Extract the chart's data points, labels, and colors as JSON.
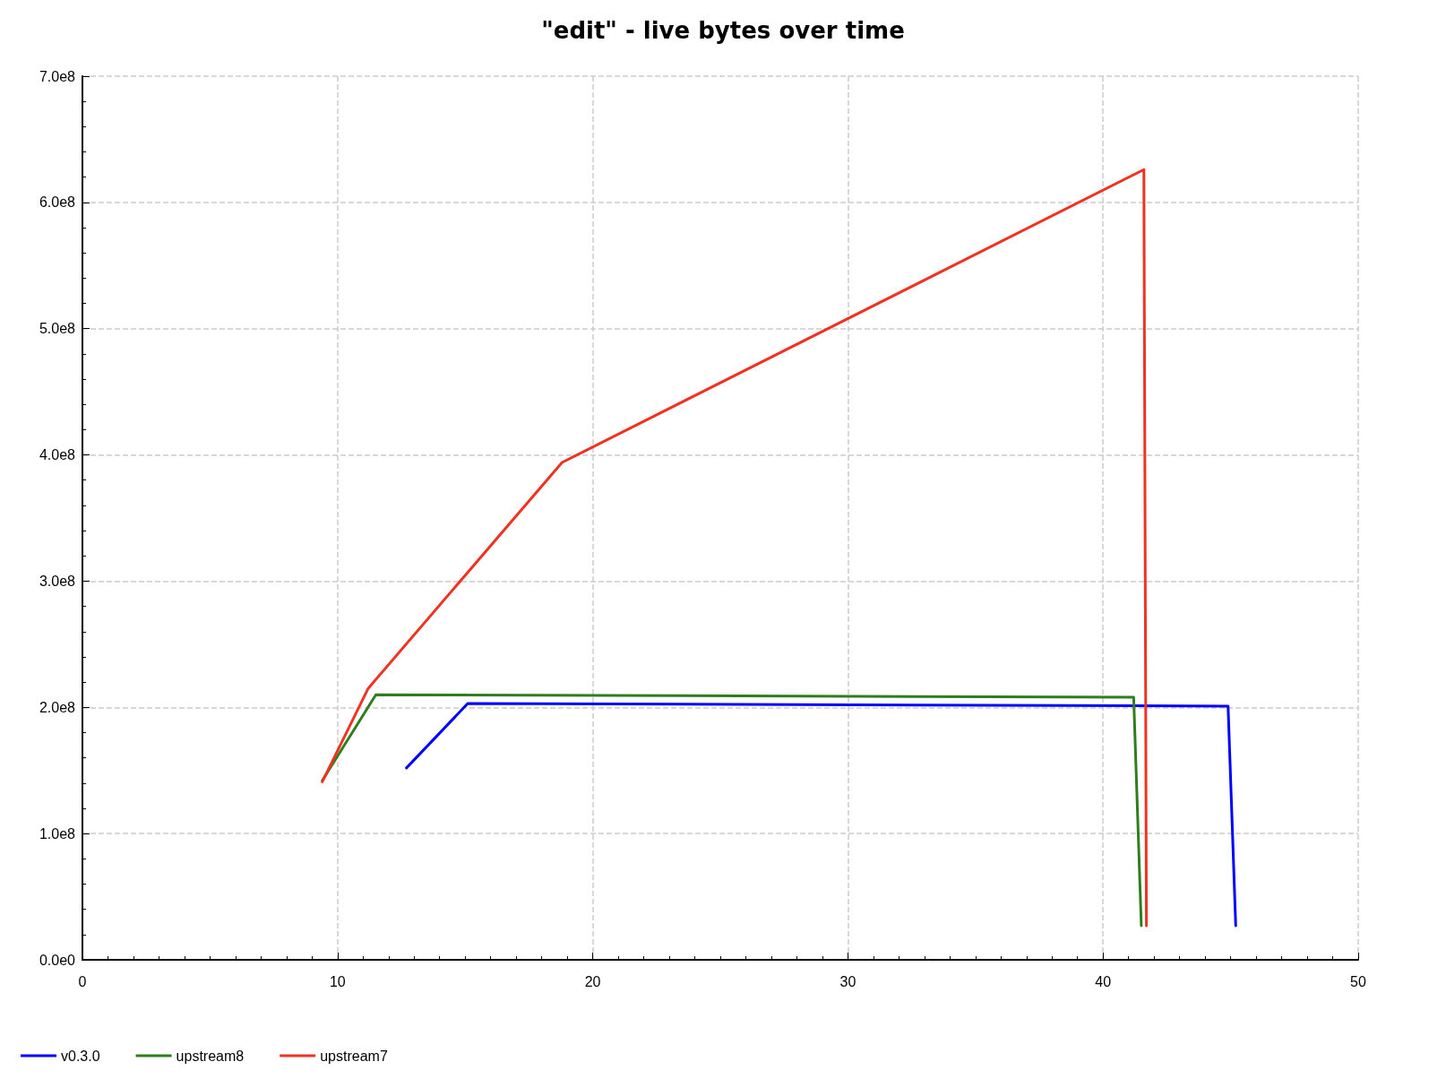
{
  "chart_data": {
    "type": "line",
    "title": "\"edit\" - live bytes over time",
    "series": [
      {
        "name": "v0.3.0",
        "color": "#0000ff",
        "x": [
          12.7,
          15.1,
          44.9,
          45.2
        ],
        "values": [
          152000000,
          203000000,
          201000000,
          27000000
        ]
      },
      {
        "name": "upstream8",
        "color": "#2e7d1e",
        "x": [
          9.4,
          11.5,
          41.2,
          41.5
        ],
        "values": [
          142000000,
          210000000,
          208000000,
          27000000
        ]
      },
      {
        "name": "upstream7",
        "color": "#ee3322",
        "x": [
          9.4,
          11.2,
          18.8,
          41.6,
          41.7
        ],
        "values": [
          141000000,
          215000000,
          394000000,
          626000000,
          27000000
        ]
      }
    ],
    "xlim": [
      0,
      50
    ],
    "xticks": [
      0,
      10,
      20,
      30,
      40,
      50
    ],
    "ylim": [
      0,
      700000000
    ],
    "yticks": [
      {
        "value": 0,
        "label": "0.0e0"
      },
      {
        "value": 100000000,
        "label": "1.0e8"
      },
      {
        "value": 200000000,
        "label": "2.0e8"
      },
      {
        "value": 300000000,
        "label": "3.0e8"
      },
      {
        "value": 400000000,
        "label": "4.0e8"
      },
      {
        "value": 500000000,
        "label": "5.0e8"
      },
      {
        "value": 600000000,
        "label": "6.0e8"
      },
      {
        "value": 700000000,
        "label": "7.0e8"
      }
    ],
    "grid": true,
    "legend": "bottom left",
    "marker": "none",
    "line_style": "solid"
  }
}
